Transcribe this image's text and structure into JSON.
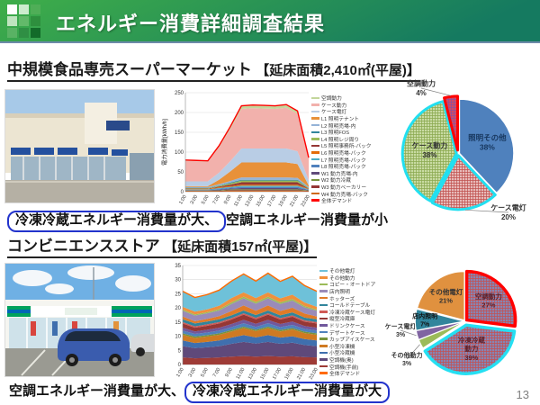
{
  "header": {
    "title": "エネルギー消費詳細調査結果"
  },
  "page_number": "13",
  "colors": {
    "hdr1": "#3fae49",
    "hdr2": "#157a60",
    "annotation_box": "#2233cc",
    "highlight_red": "#ff0000",
    "highlight_cyan": "#22dff0"
  },
  "sections": [
    {
      "heading": "中規模食品専売スーパーマーケット",
      "area_note": "【延床面積2,410㎡(平屋)】",
      "annotation_boxed": "冷凍冷蔵エネルギー消費量が大、",
      "annotation_plain": "空調エネルギー消費量が小"
    },
    {
      "heading": "コンビニエンスストア",
      "area_note": "【延床面積157㎡(平屋)】",
      "annotation_plain": "空調エネルギー消費量が大、",
      "annotation_boxed": "冷凍冷蔵エネルギー消費量が大"
    }
  ],
  "chart_data": [
    {
      "type": "area",
      "title": "スーパーマーケット 時刻別電力消費量",
      "ylabel": "電力消費量[kWh/h]",
      "ylim": [
        0,
        250
      ],
      "ytick": 50,
      "x": [
        "1:00",
        "3:00",
        "5:00",
        "7:00",
        "9:00",
        "11:00",
        "13:00",
        "15:00",
        "17:00",
        "19:00",
        "21:00",
        "23:00"
      ],
      "series": [
        {
          "name": "空調動力",
          "color": "#c3d69b",
          "values": [
            2,
            2,
            2,
            4,
            6,
            8,
            8,
            8,
            8,
            8,
            7,
            2
          ]
        },
        {
          "name": "ケース動力",
          "color": "#f2b1ac",
          "values": [
            52,
            51,
            50,
            64,
            81,
            100,
            102,
            101,
            100,
            103,
            95,
            55
          ]
        },
        {
          "name": "ケース電灯",
          "color": "#b9cde5",
          "values": [
            12,
            12,
            12,
            18,
            26,
            35,
            35,
            35,
            35,
            35,
            32,
            13
          ]
        },
        {
          "name": "L1 照明テナント",
          "color": "#e8913a",
          "values": [
            2,
            2,
            2,
            11,
            24,
            38,
            38,
            38,
            38,
            38,
            35,
            4
          ]
        },
        {
          "name": "L2 照明売場-内",
          "color": "#95b3d7",
          "values": [
            2,
            2,
            2,
            3,
            4,
            6,
            6,
            6,
            6,
            6,
            5,
            2
          ]
        },
        {
          "name": "L3 照明FOS",
          "color": "#31859c",
          "values": [
            1,
            1,
            1,
            1,
            2,
            2,
            2,
            2,
            2,
            2,
            2,
            1
          ]
        },
        {
          "name": "L4 照明レジ周り",
          "color": "#9bbb59",
          "values": [
            1,
            1,
            1,
            2,
            3,
            4,
            4,
            4,
            4,
            4,
            4,
            1
          ]
        },
        {
          "name": "L5 照明事務所-バック",
          "color": "#953735",
          "values": [
            1,
            1,
            1,
            2,
            4,
            6,
            6,
            6,
            6,
            6,
            6,
            1
          ]
        },
        {
          "name": "L6 照明売場-バック",
          "color": "#e46c0a",
          "values": [
            1,
            1,
            1,
            2,
            2,
            3,
            3,
            3,
            3,
            3,
            3,
            1
          ]
        },
        {
          "name": "L7 照明売場-バック",
          "color": "#4bacc6",
          "values": [
            1,
            1,
            1,
            2,
            2,
            3,
            3,
            3,
            3,
            3,
            3,
            1
          ]
        },
        {
          "name": "L8 照明売場-バック",
          "color": "#4f81bd",
          "values": [
            1,
            1,
            1,
            2,
            2,
            3,
            3,
            3,
            3,
            3,
            3,
            1
          ]
        },
        {
          "name": "W1 動力売場-内",
          "color": "#604a7b",
          "values": [
            1,
            1,
            1,
            2,
            2,
            3,
            3,
            3,
            3,
            3,
            3,
            1
          ]
        },
        {
          "name": "W2 動力冷蔵",
          "color": "#77933c",
          "values": [
            1,
            1,
            1,
            1,
            2,
            2,
            2,
            2,
            2,
            2,
            2,
            1
          ]
        },
        {
          "name": "W3 動力ベーカリー",
          "color": "#943634",
          "values": [
            1,
            1,
            1,
            1,
            2,
            2,
            2,
            2,
            2,
            2,
            2,
            1
          ]
        },
        {
          "name": "W4 動力売場-バック",
          "color": "#d0691a",
          "values": [
            1,
            1,
            1,
            1,
            2,
            2,
            2,
            2,
            2,
            2,
            2,
            1
          ]
        }
      ],
      "total_line": {
        "name": "全体デマンド",
        "color": "#ff0000"
      }
    },
    {
      "type": "pie",
      "title": "スーパーマーケット 電力消費内訳",
      "slices": [
        {
          "name": "照明その他",
          "pct": 38,
          "fill": "#4f81bd",
          "explode": 0.03,
          "label": {
            "r": 0.55,
            "lines": [
              "照明その他",
              "38%"
            ],
            "color": "#17375e",
            "fs": 8.5
          }
        },
        {
          "name": "ケース電灯",
          "pct": 20,
          "fill": "#e7bab9",
          "hatch": "#c0504d",
          "stroke": "#22dff0",
          "stroke_w": 3,
          "explode": 0.03,
          "label": {
            "x": 140,
            "y": 148,
            "lines": [
              "ケース電灯",
              "20%"
            ],
            "color": "#333333",
            "fs": 8,
            "leader": true
          }
        },
        {
          "name": "ケース動力",
          "pct": 38,
          "fill": "#c9dba3",
          "hatch": "#8aa84e",
          "stroke": "#22dff0",
          "stroke_w": 3,
          "explode": 0.03,
          "label": {
            "r": 0.5,
            "lines": [
              "ケース動力",
              "38%"
            ],
            "color": "#333333",
            "fs": 8
          }
        },
        {
          "name": "空調動力",
          "pct": 4,
          "fill": "#d44a62",
          "hatch": "#8a50a0",
          "stroke": "#ff0000",
          "stroke_w": 3,
          "explode": 0.07,
          "label": {
            "x": 43,
            "y": 10,
            "lines": [
              "空調動力",
              "4%"
            ],
            "color": "#333333",
            "fs": 8,
            "leader": true
          }
        }
      ]
    },
    {
      "type": "area",
      "title": "コンビニエンスストア 時刻別電力消費量",
      "ylabel": "",
      "ylim": [
        0,
        35
      ],
      "ytick": 5,
      "x": [
        "1:00",
        "3:00",
        "5:00",
        "7:00",
        "9:00",
        "11:00",
        "13:00",
        "15:00",
        "17:00",
        "19:00",
        "21:00",
        "23:00"
      ],
      "series": [
        {
          "name": "その他電灯",
          "color": "#6ec1d9",
          "values": [
            5.5,
            5,
            5.2,
            5.5,
            6,
            6.5,
            6,
            6.8,
            6,
            6.5,
            6,
            5.5
          ]
        },
        {
          "name": "その他動力",
          "color": "#f0903c",
          "values": [
            1,
            1,
            1,
            1.2,
            1.5,
            1.5,
            1.4,
            1.5,
            1.4,
            1.5,
            1.2,
            1
          ]
        },
        {
          "name": "コピー・オートドア",
          "color": "#9bbb59",
          "values": [
            0.4,
            0.4,
            0.4,
            0.5,
            0.6,
            0.6,
            0.6,
            0.6,
            0.6,
            0.6,
            0.5,
            0.4
          ]
        },
        {
          "name": "店内照明",
          "color": "#9a8bb8",
          "values": [
            2,
            2,
            2,
            2,
            2.5,
            2.5,
            2.5,
            2.5,
            2.5,
            2.5,
            2.2,
            2
          ]
        },
        {
          "name": "ホッターズ",
          "color": "#e07b28",
          "values": [
            1,
            0.8,
            0.9,
            1.1,
            1.5,
            1.8,
            1.5,
            1.8,
            1.5,
            1.7,
            1.4,
            1
          ]
        },
        {
          "name": "コールドテーブル",
          "color": "#31859c",
          "values": [
            1,
            1,
            1,
            1,
            1,
            1,
            1,
            1,
            1,
            1,
            1,
            1
          ]
        },
        {
          "name": "冷凍冷蔵ケース電灯",
          "color": "#d05a55",
          "values": [
            0.5,
            0.5,
            0.5,
            0.5,
            0.5,
            0.5,
            0.5,
            0.5,
            0.5,
            0.5,
            0.5,
            0.5
          ]
        },
        {
          "name": "縦型冷蔵庫",
          "color": "#953735",
          "values": [
            1.5,
            1.3,
            1.4,
            1.5,
            1.6,
            1.8,
            1.6,
            1.8,
            1.6,
            1.7,
            1.5,
            1.5
          ]
        },
        {
          "name": "ドリンクケース",
          "color": "#71589c",
          "values": [
            1,
            0.9,
            1,
            1,
            1.1,
            1.2,
            1.1,
            1.2,
            1.1,
            1.2,
            1,
            1
          ]
        },
        {
          "name": "デザートケース",
          "color": "#4f81bd",
          "values": [
            1,
            0.9,
            0.9,
            1,
            1,
            1.2,
            1,
            1.2,
            1,
            1.1,
            1,
            1
          ]
        },
        {
          "name": "カップアイスケース",
          "color": "#77933c",
          "values": [
            0.5,
            0.5,
            0.5,
            0.5,
            0.5,
            0.5,
            0.5,
            0.5,
            0.5,
            0.5,
            0.5,
            0.5
          ]
        },
        {
          "name": "小型冷凍機",
          "color": "#cf7a22",
          "values": [
            2,
            1.8,
            1.9,
            2,
            2.2,
            2.5,
            2.2,
            2.5,
            2.2,
            2.4,
            2.1,
            2
          ]
        },
        {
          "name": "小型冷蔵機",
          "color": "#3f6fae",
          "values": [
            2,
            1.8,
            1.9,
            2,
            2.2,
            2.4,
            2.2,
            2.4,
            2.2,
            2.3,
            2.1,
            2
          ]
        },
        {
          "name": "空調機(奥)",
          "color": "#5f497a",
          "values": [
            4,
            3.6,
            3.8,
            4,
            4.5,
            5,
            4.6,
            5,
            4.5,
            4.8,
            4.3,
            4
          ]
        },
        {
          "name": "空調機(手前)",
          "color": "#9e3b36",
          "values": [
            2.5,
            2.2,
            2.3,
            2.5,
            2.8,
            3,
            2.8,
            3,
            2.8,
            2.9,
            2.6,
            2.5
          ]
        }
      ],
      "total_line": {
        "name": "全体デマンド",
        "color": "#ff6a00"
      }
    },
    {
      "type": "pie",
      "title": "コンビニエンスストア 電力消費内訳",
      "slices": [
        {
          "name": "空調動力",
          "pct": 27,
          "fill": "#8585b5",
          "hatch": "#c45050",
          "stroke": "#ff0000",
          "stroke_w": 3.5,
          "explode": 0.04,
          "label": {
            "r": 0.6,
            "lines": [
              "空調動力",
              "27%"
            ],
            "color": "#5a1f2a",
            "fs": 7.5
          }
        },
        {
          "name": "冷凍冷蔵動力",
          "pct": 39,
          "fill": "#8585b5",
          "hatch": "#c45050",
          "stroke": "#25dff2",
          "stroke_w": 3.5,
          "explode": 0.08,
          "label": {
            "r": 0.5,
            "lines": [
              "冷凍冷蔵",
              "動力",
              "39%"
            ],
            "color": "#5a1f2a",
            "fs": 7.5
          }
        },
        {
          "name": "その他動力",
          "pct": 3,
          "fill": "#9bbb59",
          "explode": 0.03,
          "label": {
            "x": 27,
            "y": 112,
            "lines": [
              "その他動力",
              "3%"
            ],
            "color": "#333333",
            "fs": 7,
            "leader": true
          }
        },
        {
          "name": "ケース電灯",
          "pct": 3,
          "fill": "#8064a2",
          "explode": 0.03,
          "label": {
            "x": 20,
            "y": 80,
            "lines": [
              "ケース電灯",
              "3%"
            ],
            "color": "#333333",
            "fs": 7,
            "leader": true
          }
        },
        {
          "name": "店内照明",
          "pct": 7,
          "fill": "#31859c",
          "explode": 0.03,
          "label": {
            "r": 0.8,
            "lines": [
              "店内照明",
              "7%"
            ],
            "color": "#111111",
            "fs": 7
          }
        },
        {
          "name": "その他電灯",
          "pct": 21,
          "fill": "#e0913f",
          "explode": 0.03,
          "label": {
            "r": 0.62,
            "lines": [
              "その他電灯",
              "21%"
            ],
            "color": "#333333",
            "fs": 7.5
          }
        }
      ]
    }
  ]
}
